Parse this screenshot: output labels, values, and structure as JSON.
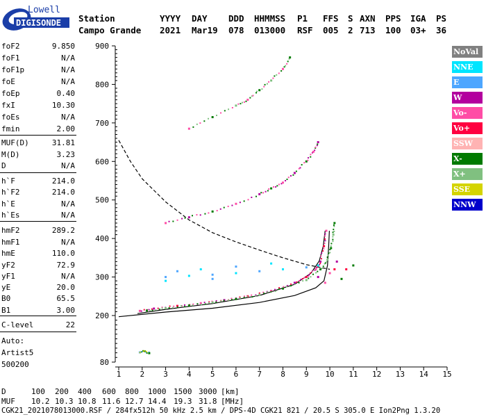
{
  "logo": {
    "line1": "Lowell",
    "line2": "DIGISONDE"
  },
  "header": {
    "col_labels": [
      "Station",
      "YYYY",
      "DAY",
      "DDD",
      "HHMMSS",
      "P1",
      "FFS",
      "S",
      "AXN",
      "PPS",
      "IGA",
      "PS"
    ],
    "col_values": [
      "Campo Grande",
      "2021",
      "Mar19",
      "078",
      "013000",
      "RSF",
      "005",
      "2",
      "713",
      "100",
      "03+",
      "36"
    ]
  },
  "params": [
    {
      "name": "foF2",
      "value": "9.850"
    },
    {
      "name": "foF1",
      "value": "N/A"
    },
    {
      "name": "foF1p",
      "value": "N/A"
    },
    {
      "name": "foE",
      "value": "N/A"
    },
    {
      "name": "foEp",
      "value": "0.40"
    },
    {
      "name": "fxI",
      "value": "10.30"
    },
    {
      "name": "foEs",
      "value": "N/A"
    },
    {
      "name": "fmin",
      "value": "2.00"
    },
    {
      "name": "MUF(D)",
      "value": "31.81"
    },
    {
      "name": "M(D)",
      "value": "3.23"
    },
    {
      "name": "D",
      "value": "N/A"
    },
    {
      "name": "h`F",
      "value": "214.0"
    },
    {
      "name": "h`F2",
      "value": "214.0"
    },
    {
      "name": "h`E",
      "value": "N/A"
    },
    {
      "name": "h`Es",
      "value": "N/A"
    },
    {
      "name": "hmF2",
      "value": "289.2"
    },
    {
      "name": "hmF1",
      "value": "N/A"
    },
    {
      "name": "hmE",
      "value": "110.0"
    },
    {
      "name": "yF2",
      "value": "72.9"
    },
    {
      "name": "yF1",
      "value": "N/A"
    },
    {
      "name": "yE",
      "value": "20.0"
    },
    {
      "name": "B0",
      "value": "65.5"
    },
    {
      "name": "B1",
      "value": "3.00"
    },
    {
      "name": "C-level",
      "value": "22"
    }
  ],
  "auto_info": {
    "line1": "Auto:",
    "line2": "Artist5",
    "line3": "500200"
  },
  "legend": [
    {
      "label": "NoVal",
      "bg": "#808080",
      "fg": "#ffffff"
    },
    {
      "label": "NNE",
      "bg": "#00e5ff",
      "fg": "#ffffff"
    },
    {
      "label": "E",
      "bg": "#4da6ff",
      "fg": "#ffffff"
    },
    {
      "label": "W",
      "bg": "#b3009e",
      "fg": "#ffffff"
    },
    {
      "label": "Vo-",
      "bg": "#ff4da6",
      "fg": "#ffffff"
    },
    {
      "label": "Vo+",
      "bg": "#ff0040",
      "fg": "#ffffff"
    },
    {
      "label": "SSW",
      "bg": "#ffb3b3",
      "fg": "#ffffff"
    },
    {
      "label": "X-",
      "bg": "#007a00",
      "fg": "#ffffff"
    },
    {
      "label": "X+",
      "bg": "#80c080",
      "fg": "#ffffff"
    },
    {
      "label": "SSE",
      "bg": "#d4d400",
      "fg": "#ffffff"
    },
    {
      "label": "NNW",
      "bg": "#0000cc",
      "fg": "#ffffff"
    }
  ],
  "footer": {
    "dist_label": "D",
    "dist_values": [
      "100",
      "200",
      "400",
      "600",
      "800",
      "1000",
      "1500",
      "3000"
    ],
    "dist_unit": "[km]",
    "muf_label": "MUF",
    "muf_values": [
      "10.2",
      "10.3",
      "10.8",
      "11.6",
      "12.7",
      "14.4",
      "19.3",
      "31.8"
    ],
    "muf_unit": "[MHz]",
    "file_info": "CGK21_2021078013000.RSF / 284fx512h 50 kHz 2.5 km / DPS-4D CGK21 821 / 20.5 S 305.0 E",
    "software": "Ion2Png 1.3.20"
  },
  "chart_data": {
    "type": "scatter",
    "title": "",
    "xlabel": "",
    "ylabel": "",
    "xlim": [
      1,
      15
    ],
    "ylim": [
      80,
      900
    ],
    "x_ticks": [
      "1",
      "2",
      "3",
      "4",
      "5",
      "6",
      "7",
      "8",
      "9",
      "10",
      "11",
      "12",
      "13",
      "14",
      "15"
    ],
    "y_ticks": [
      "80",
      "200",
      "300",
      "400",
      "500",
      "600",
      "700",
      "800",
      "900"
    ],
    "grid": false,
    "lines": [
      {
        "name": "",
        "style": "solid",
        "color": "#000000",
        "points": [
          [
            1.0,
            197
          ],
          [
            3,
            209
          ],
          [
            5,
            219
          ],
          [
            7,
            234
          ],
          [
            8.5,
            252
          ],
          [
            9.4,
            272
          ],
          [
            9.75,
            290
          ],
          [
            9.9,
            330
          ],
          [
            9.95,
            380
          ],
          [
            9.98,
            420
          ]
        ]
      },
      {
        "name": "",
        "style": "solid",
        "color": "#000000",
        "points": [
          [
            1.8,
            205
          ],
          [
            3,
            216
          ],
          [
            5,
            231
          ],
          [
            7,
            252
          ],
          [
            8.5,
            281
          ],
          [
            9.2,
            310
          ],
          [
            9.55,
            342
          ],
          [
            9.72,
            380
          ],
          [
            9.8,
            420
          ]
        ]
      },
      {
        "name": "",
        "style": "dashed",
        "color": "#000000",
        "points": [
          [
            1.0,
            655
          ],
          [
            1.5,
            600
          ],
          [
            2,
            555
          ],
          [
            3,
            495
          ],
          [
            4,
            448
          ],
          [
            5,
            415
          ],
          [
            6,
            391
          ],
          [
            7,
            370
          ],
          [
            8,
            350
          ],
          [
            9,
            332
          ],
          [
            10,
            320
          ]
        ]
      }
    ],
    "traces": [
      {
        "name": "O-trace F2",
        "colors": [
          "#ff4da6",
          "#b3009e",
          "#ff0040"
        ],
        "points": [
          [
            1.9,
            212
          ],
          [
            2.5,
            218
          ],
          [
            3.5,
            225
          ],
          [
            4.5,
            232
          ],
          [
            5.5,
            240
          ],
          [
            6.5,
            250
          ],
          [
            7.5,
            264
          ],
          [
            8.5,
            285
          ],
          [
            9.0,
            300
          ],
          [
            9.4,
            320
          ],
          [
            9.6,
            340
          ],
          [
            9.75,
            380
          ],
          [
            9.85,
            420
          ]
        ]
      },
      {
        "name": "X-trace F2",
        "colors": [
          "#007a00",
          "#80c080"
        ],
        "points": [
          [
            2.2,
            213
          ],
          [
            3,
            219
          ],
          [
            4,
            226
          ],
          [
            5,
            234
          ],
          [
            6,
            243
          ],
          [
            7,
            254
          ],
          [
            8,
            270
          ],
          [
            9,
            292
          ],
          [
            9.6,
            320
          ],
          [
            9.9,
            345
          ],
          [
            10.05,
            375
          ],
          [
            10.15,
            410
          ],
          [
            10.2,
            440
          ]
        ]
      },
      {
        "name": "2nd hop",
        "colors": [
          "#ff4da6",
          "#b3009e",
          "#007a00"
        ],
        "points": [
          [
            3,
            440
          ],
          [
            4,
            455
          ],
          [
            5,
            470
          ],
          [
            6,
            490
          ],
          [
            7,
            515
          ],
          [
            7.5,
            530
          ],
          [
            8,
            545
          ],
          [
            8.5,
            570
          ],
          [
            9,
            600
          ],
          [
            9.3,
            625
          ],
          [
            9.5,
            650
          ]
        ]
      },
      {
        "name": "3rd hop",
        "colors": [
          "#ff4da6",
          "#007a00",
          "#80c080"
        ],
        "points": [
          [
            4,
            685
          ],
          [
            5,
            715
          ],
          [
            6,
            745
          ],
          [
            6.5,
            760
          ],
          [
            7,
            785
          ],
          [
            7.5,
            810
          ],
          [
            8,
            840
          ],
          [
            8.3,
            870
          ]
        ]
      },
      {
        "name": "spread F",
        "colors": [
          "#4da6ff",
          "#00e5ff"
        ],
        "points": [
          [
            3,
            300
          ],
          [
            4,
            303
          ],
          [
            5,
            306
          ],
          [
            6,
            310
          ],
          [
            7,
            315
          ],
          [
            8,
            320
          ],
          [
            9,
            325
          ],
          [
            9.5,
            330
          ],
          [
            3.5,
            315
          ],
          [
            4.5,
            320
          ],
          [
            6,
            327
          ],
          [
            3,
            290
          ],
          [
            5,
            295
          ],
          [
            7.5,
            335
          ]
        ]
      },
      {
        "name": "cluster",
        "colors": [
          "#b3009e",
          "#ff4da6",
          "#ff0040",
          "#007a00"
        ],
        "points": [
          [
            9.5,
            300
          ],
          [
            10,
            310
          ],
          [
            10.2,
            320
          ],
          [
            10.5,
            295
          ],
          [
            10.3,
            340
          ],
          [
            9.8,
            285
          ],
          [
            10.7,
            320
          ],
          [
            11,
            330
          ]
        ]
      },
      {
        "name": "low E",
        "colors": [
          "#4da6ff",
          "#d4d400",
          "#007a00"
        ],
        "points": [
          [
            1.9,
            105
          ],
          [
            2.1,
            108
          ],
          [
            2.3,
            103
          ]
        ]
      }
    ]
  }
}
